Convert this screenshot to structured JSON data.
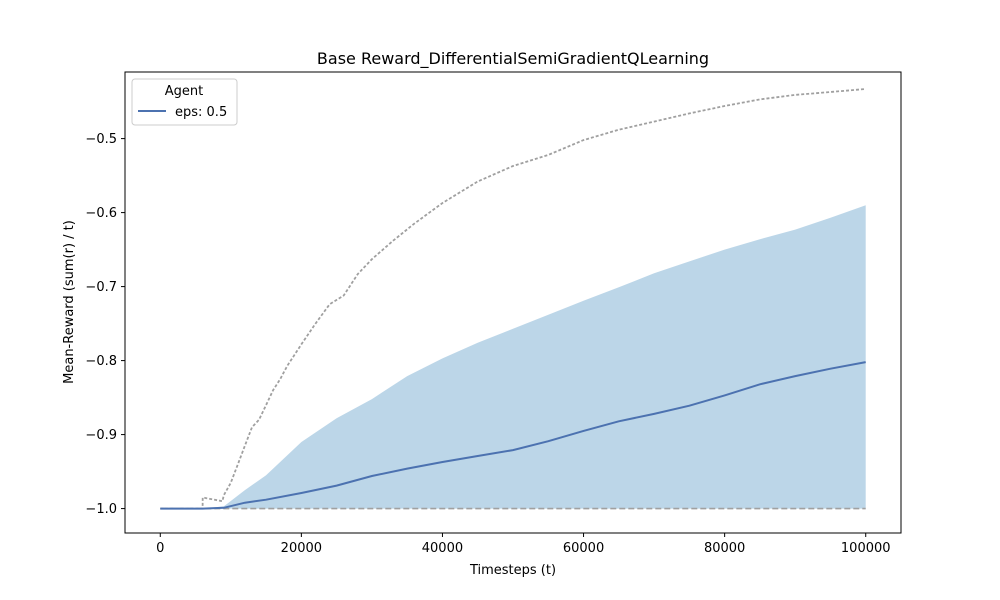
{
  "chart_data": {
    "type": "line",
    "title": "Base Reward_DifferentialSemiGradientQLearning",
    "xlabel": "Timesteps (t)",
    "ylabel": "Mean-Reward (sum(r) / t)",
    "xlim": [
      -5000,
      105000
    ],
    "ylim": [
      -1.033,
      -0.41
    ],
    "xticks": [
      0,
      20000,
      40000,
      60000,
      80000,
      100000
    ],
    "xtick_labels": [
      "0",
      "20000",
      "40000",
      "60000",
      "80000",
      "100000"
    ],
    "yticks": [
      -1.0,
      -0.9,
      -0.8,
      -0.7,
      -0.6,
      -0.5
    ],
    "ytick_labels": [
      "−1.0",
      "−0.9",
      "−0.8",
      "−0.7",
      "−0.6",
      "−0.5"
    ],
    "grid": false,
    "legend": {
      "title": "Agent",
      "location": "top-left",
      "entries": [
        "eps: 0.5"
      ]
    },
    "colors": {
      "mean_line": "#4c72b0",
      "band_fill": "#a6c8e0",
      "bound_line": "#a0a0a0"
    },
    "series": [
      {
        "name": "eps: 0.5",
        "role": "mean",
        "x": [
          0,
          6000,
          9000,
          12000,
          15000,
          20000,
          25000,
          30000,
          35000,
          40000,
          45000,
          50000,
          55000,
          60000,
          65000,
          70000,
          75000,
          80000,
          85000,
          90000,
          95000,
          100000
        ],
        "y": [
          -1.0,
          -1.0,
          -0.999,
          -0.992,
          -0.988,
          -0.979,
          -0.969,
          -0.956,
          -0.946,
          -0.937,
          -0.929,
          -0.921,
          -0.909,
          -0.895,
          -0.882,
          -0.872,
          -0.861,
          -0.847,
          -0.832,
          -0.821,
          -0.811,
          -0.802
        ]
      },
      {
        "role": "band_upper",
        "x": [
          0,
          6000,
          9000,
          12000,
          15000,
          20000,
          25000,
          30000,
          35000,
          40000,
          45000,
          50000,
          55000,
          60000,
          65000,
          70000,
          75000,
          80000,
          85000,
          90000,
          95000,
          100000
        ],
        "y": [
          -1.0,
          -1.0,
          -0.997,
          -0.975,
          -0.955,
          -0.91,
          -0.878,
          -0.852,
          -0.821,
          -0.797,
          -0.776,
          -0.757,
          -0.738,
          -0.719,
          -0.701,
          -0.682,
          -0.666,
          -0.65,
          -0.636,
          -0.623,
          -0.607,
          -0.59
        ]
      },
      {
        "role": "band_lower",
        "x": [
          0,
          100000
        ],
        "y": [
          -1.0,
          -1.0
        ]
      },
      {
        "role": "max",
        "x": [
          0,
          6000,
          6010,
          8800,
          9000,
          10000,
          11000,
          12000,
          13000,
          14000,
          15000,
          16000,
          17000,
          18000,
          20000,
          22000,
          24000,
          26000,
          28000,
          30000,
          33000,
          36000,
          40000,
          45000,
          50000,
          55000,
          60000,
          65000,
          70000,
          75000,
          80000,
          85000,
          90000,
          95000,
          100000
        ],
        "y": [
          -1.0,
          -1.0,
          -0.985,
          -0.99,
          -0.982,
          -0.965,
          -0.94,
          -0.915,
          -0.89,
          -0.88,
          -0.86,
          -0.84,
          -0.825,
          -0.807,
          -0.778,
          -0.75,
          -0.724,
          -0.712,
          -0.683,
          -0.663,
          -0.638,
          -0.615,
          -0.587,
          -0.558,
          -0.537,
          -0.522,
          -0.502,
          -0.488,
          -0.477,
          -0.466,
          -0.456,
          -0.447,
          -0.441,
          -0.437,
          -0.433
        ]
      },
      {
        "role": "min",
        "x": [
          0,
          100000
        ],
        "y": [
          -1.0,
          -1.0
        ]
      }
    ]
  }
}
